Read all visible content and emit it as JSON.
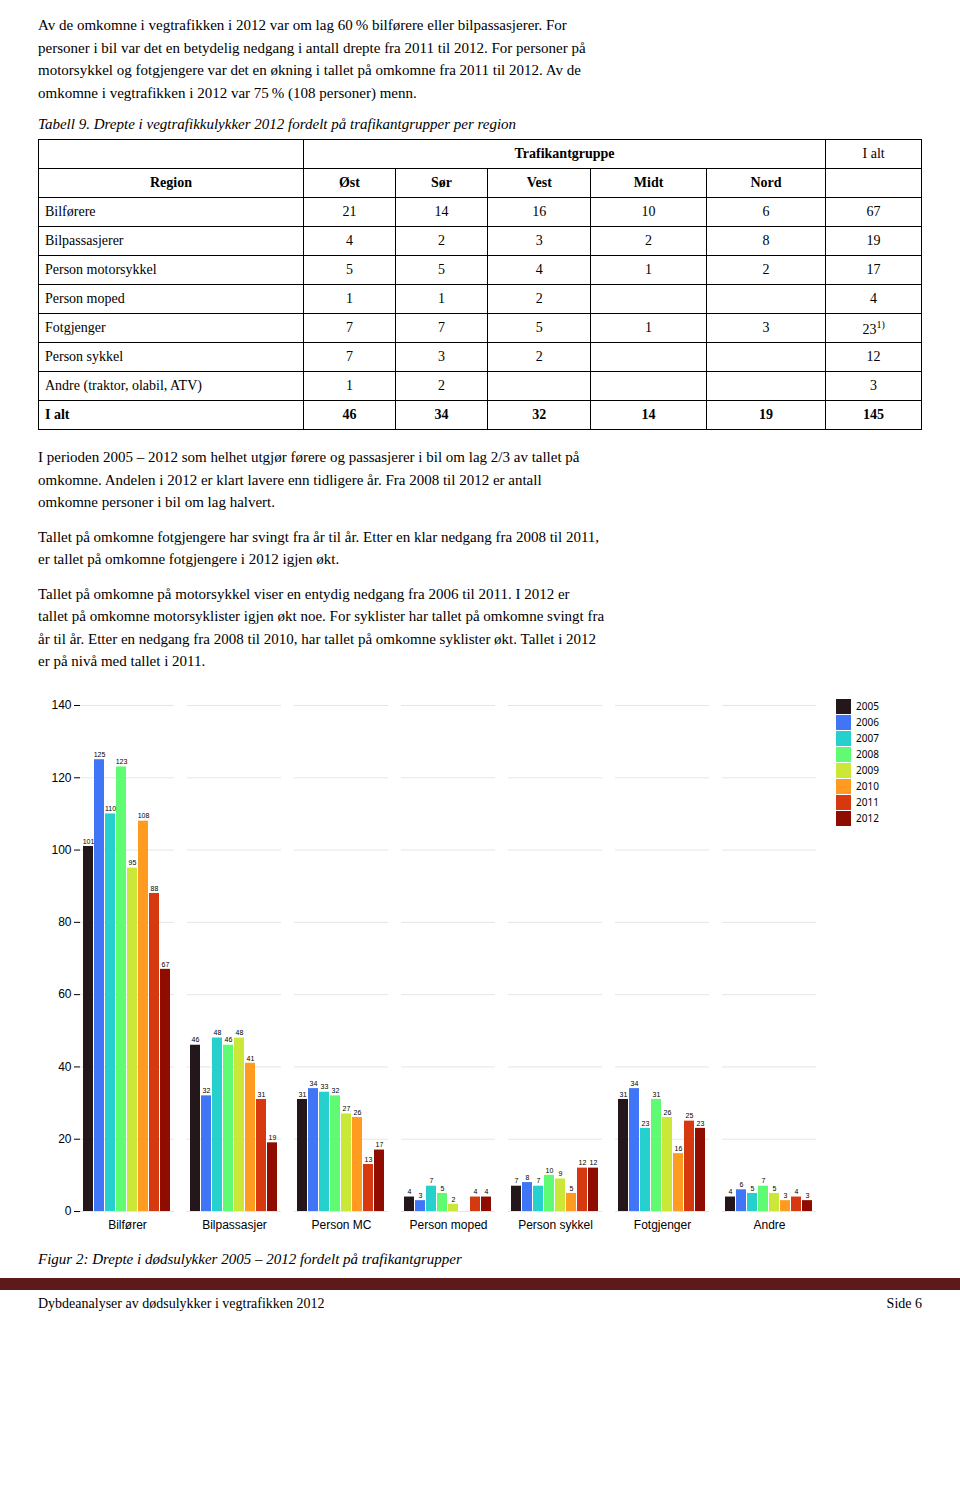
{
  "paragraphs_before_table": [
    "Av de omkomne i vegtrafikken i 2012 var om lag 60 % bilførere eller bilpassasjerer. For\npersoner i bil var det en betydelig nedgang i antall drepte fra 2011 til 2012. For personer på\nmotorsykkel og fotgjengere var det en økning i tallet på omkomne fra 2011 til 2012. Av de\nomkomne i vegtrafikken i 2012 var 75 % (108 personer) menn."
  ],
  "paragraphs_after_table": [
    "I perioden 2005 – 2012 som helhet utgjør førere og passasjerer i bil om lag 2/3 av tallet på\nomkomne. Andelen i 2012 er klart lavere enn tidligere år. Fra 2008 til 2012 er antall\nomkomne personer i bil om lag halvert.",
    "Tallet på omkomne fotgjengere har svingt fra år til år. Etter en klar nedgang fra 2008 til 2011,\ner tallet på omkomne fotgjengere i 2012 igjen økt.",
    "Tallet på omkomne på motorsykkel viser en entydig nedgang fra 2006 til 2011. I 2012 er\ntallet på omkomne motorsyklister igjen økt noe. For syklister har tallet på omkomne svingt fra\når til år. Etter en nedgang fra 2008 til 2010, har tallet på omkomne syklister økt. Tallet i 2012\ner på nivå med tallet i 2011."
  ],
  "footer": {
    "left": "Dybdeanalyser av dødsulykker i vegtrafikken 2012",
    "right": "Side 6"
  },
  "chart_data": [
    {
      "type": "table",
      "title": "Tabell 9. Drepte i vegtrafikkulykker 2012 fordelt på trafikantgrupper per region",
      "group_header": "Trafikantgruppe",
      "total_header": "I alt",
      "columns": [
        "Region",
        "Øst",
        "Sør",
        "Vest",
        "Midt",
        "Nord"
      ],
      "rows": [
        {
          "name": "Bilførere",
          "values": [
            21,
            14,
            16,
            10,
            6
          ],
          "total": 67
        },
        {
          "name": "Bilpassasjerer",
          "values": [
            4,
            2,
            3,
            2,
            8
          ],
          "total": 19
        },
        {
          "name": "Person motorsykkel",
          "values": [
            5,
            5,
            4,
            1,
            2
          ],
          "total": 17
        },
        {
          "name": "Person moped",
          "values": [
            1,
            1,
            2,
            null,
            null
          ],
          "total": 4
        },
        {
          "name": "Fotgjenger",
          "values": [
            7,
            7,
            5,
            1,
            3
          ],
          "total": 23,
          "total_note": "1)"
        },
        {
          "name": "Person sykkel",
          "values": [
            7,
            3,
            2,
            null,
            null
          ],
          "total": 12
        },
        {
          "name": "Andre (traktor, olabil, ATV)",
          "values": [
            1,
            2,
            null,
            null,
            null
          ],
          "total": 3
        },
        {
          "name": "I alt",
          "values": [
            46,
            34,
            32,
            14,
            19
          ],
          "total": 145
        }
      ]
    },
    {
      "type": "bar",
      "title": "Figur 2: Drepte i dødsulykker 2005 – 2012 fordelt på trafikantgrupper",
      "categories": [
        "Bilfører",
        "Bilpassasjer",
        "Person MC",
        "Person moped",
        "Person sykkel",
        "Fotgjenger",
        "Andre"
      ],
      "series": [
        {
          "name": "2005",
          "values": [
            101,
            46,
            31,
            4,
            7,
            31,
            4
          ]
        },
        {
          "name": "2006",
          "values": [
            125,
            32,
            34,
            3,
            8,
            34,
            6
          ]
        },
        {
          "name": "2007",
          "values": [
            110,
            48,
            33,
            7,
            7,
            23,
            5
          ]
        },
        {
          "name": "2008",
          "values": [
            123,
            46,
            32,
            5,
            10,
            31,
            7
          ]
        },
        {
          "name": "2009",
          "values": [
            95,
            48,
            27,
            2,
            9,
            26,
            5
          ]
        },
        {
          "name": "2010",
          "values": [
            108,
            41,
            26,
            0,
            5,
            16,
            3
          ],
          "value_labels": [
            "108",
            "41",
            "26",
            null,
            "5",
            "16",
            "3"
          ]
        },
        {
          "name": "2011",
          "values": [
            88,
            31,
            13,
            4,
            12,
            25,
            4
          ]
        },
        {
          "name": "2012",
          "values": [
            67,
            19,
            17,
            4,
            12,
            23,
            3
          ]
        }
      ],
      "ylim": [
        0,
        140
      ],
      "yticks": [
        0,
        20,
        40,
        60,
        80,
        100,
        120,
        140
      ],
      "grid": true,
      "legend": "right",
      "data_labels": true
    }
  ]
}
